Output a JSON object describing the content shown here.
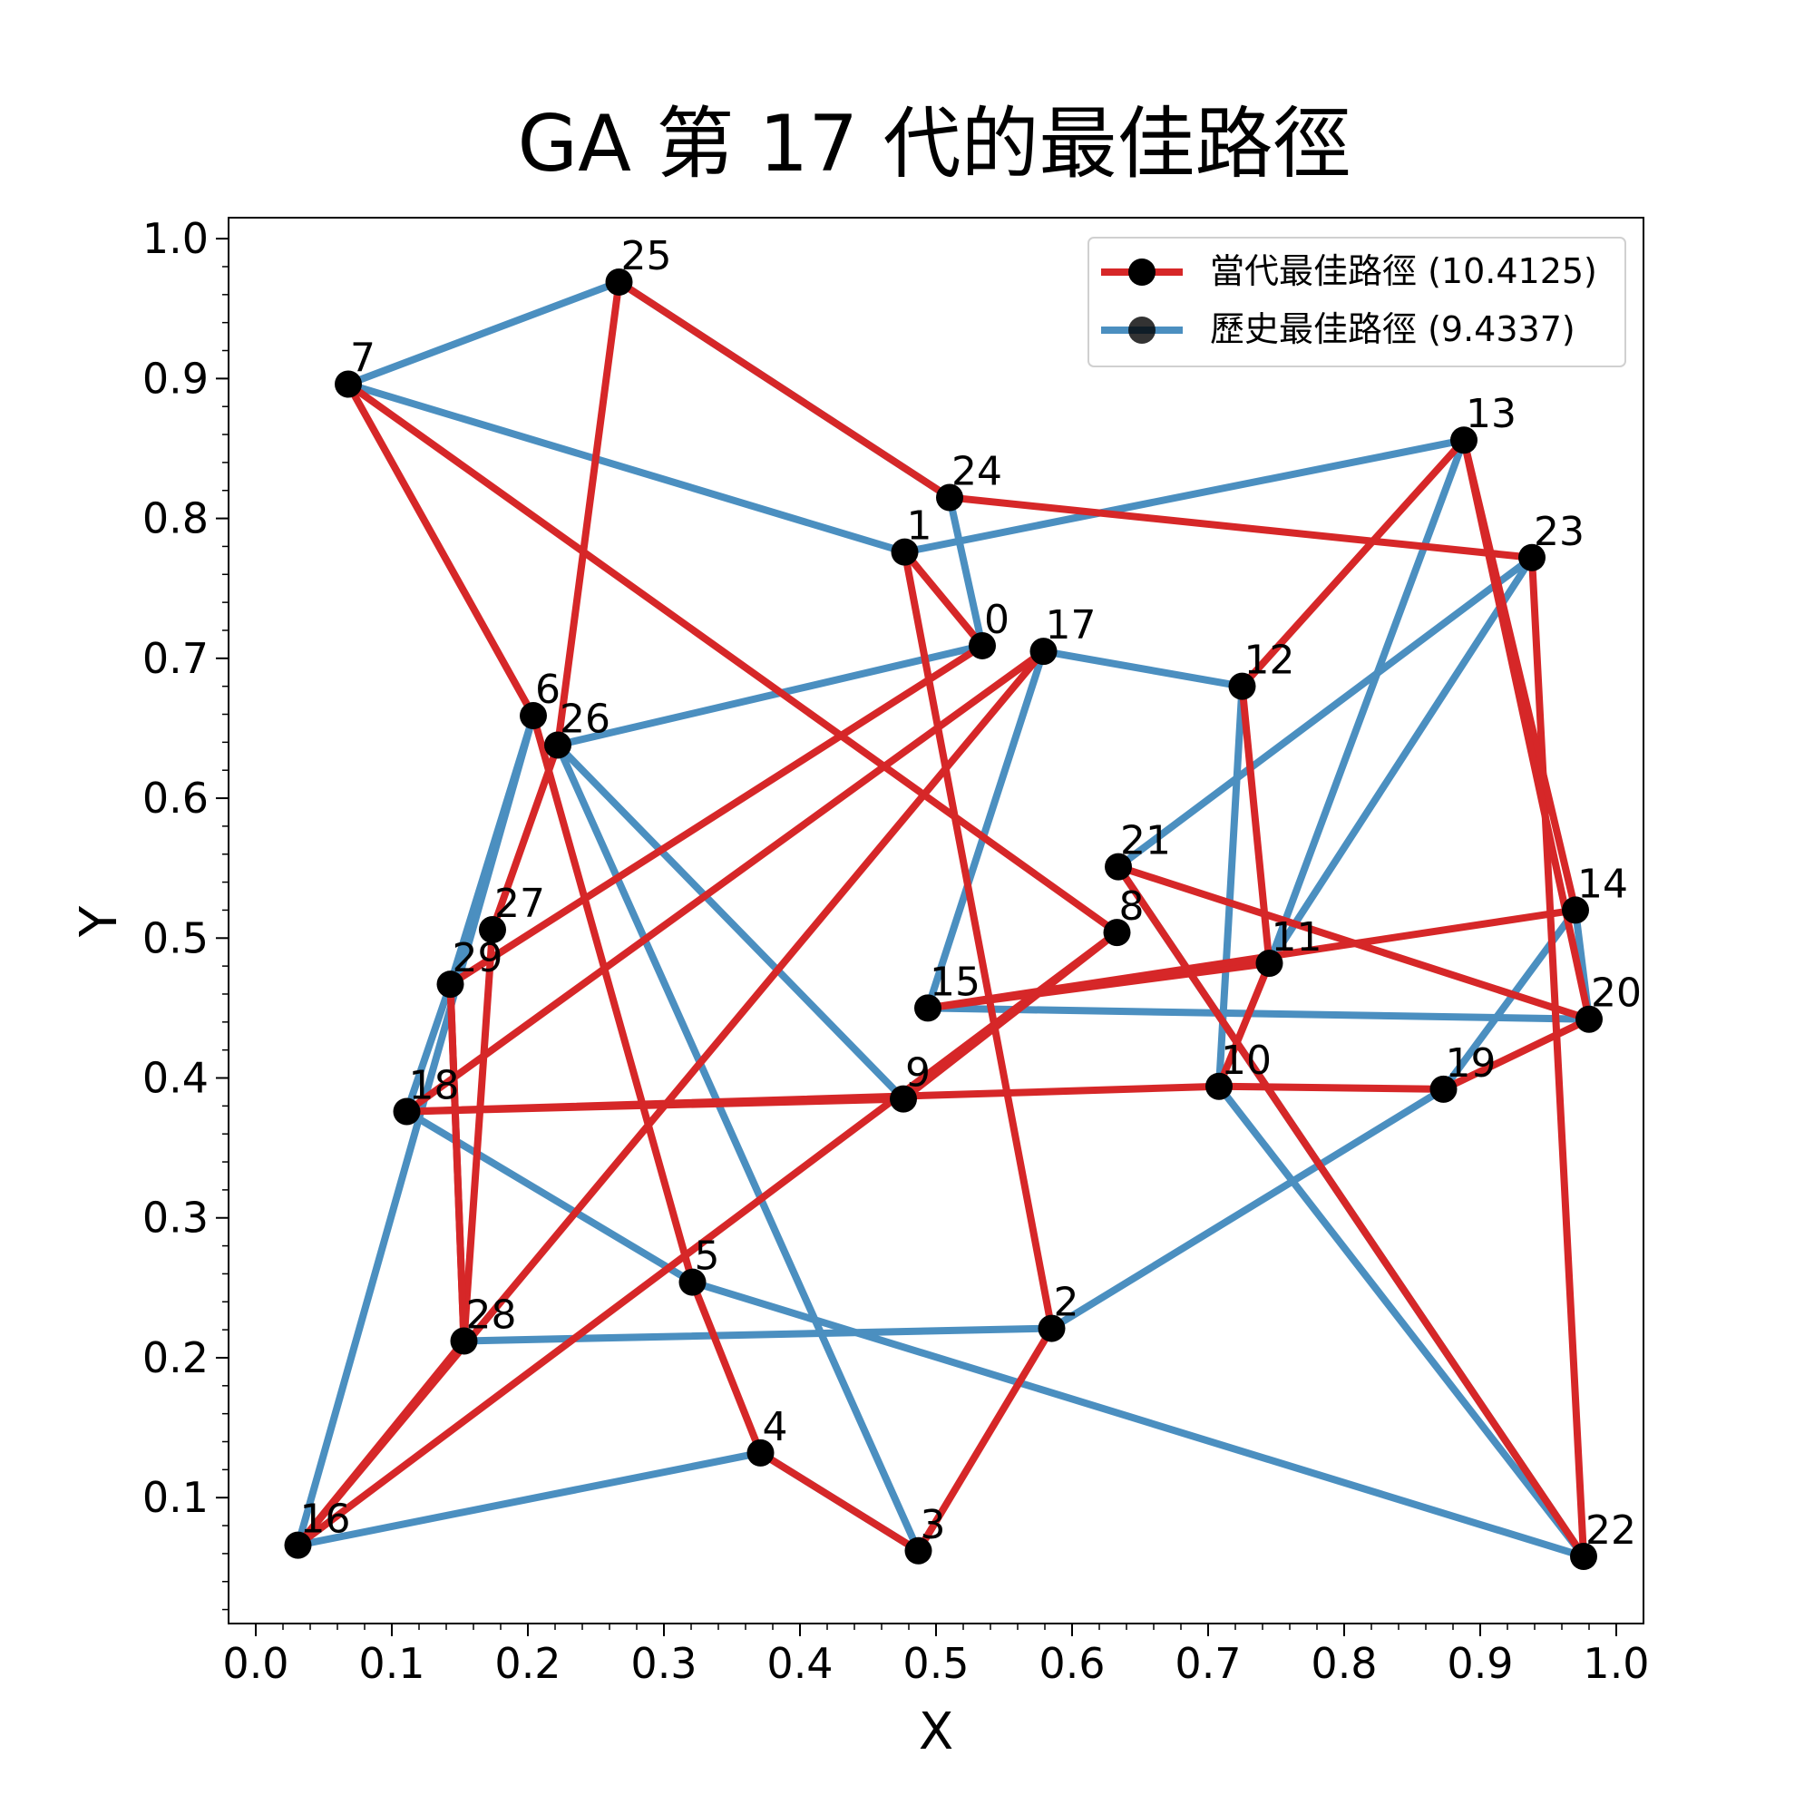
{
  "chart_data": {
    "type": "line",
    "title": "GA 第 17 代的最佳路徑",
    "xlabel": "X",
    "ylabel": "Y",
    "xlim": [
      -0.02,
      1.02
    ],
    "ylim": [
      0.01,
      1.015
    ],
    "xticks": [
      "0.0",
      "0.1",
      "0.2",
      "0.3",
      "0.4",
      "0.5",
      "0.6",
      "0.7",
      "0.8",
      "0.9",
      "1.0"
    ],
    "yticks": [
      "0.1",
      "0.2",
      "0.3",
      "0.4",
      "0.5",
      "0.6",
      "0.7",
      "0.8",
      "0.9",
      "1.0"
    ],
    "grid": false,
    "legend_position": "top-right",
    "cities": [
      {
        "id": "0",
        "x": 0.534,
        "y": 0.709
      },
      {
        "id": "1",
        "x": 0.477,
        "y": 0.776
      },
      {
        "id": "2",
        "x": 0.585,
        "y": 0.221
      },
      {
        "id": "3",
        "x": 0.487,
        "y": 0.062
      },
      {
        "id": "4",
        "x": 0.371,
        "y": 0.132
      },
      {
        "id": "5",
        "x": 0.321,
        "y": 0.254
      },
      {
        "id": "6",
        "x": 0.204,
        "y": 0.659
      },
      {
        "id": "7",
        "x": 0.068,
        "y": 0.896
      },
      {
        "id": "8",
        "x": 0.633,
        "y": 0.504
      },
      {
        "id": "9",
        "x": 0.476,
        "y": 0.385
      },
      {
        "id": "10",
        "x": 0.708,
        "y": 0.394
      },
      {
        "id": "11",
        "x": 0.745,
        "y": 0.482
      },
      {
        "id": "12",
        "x": 0.725,
        "y": 0.68
      },
      {
        "id": "13",
        "x": 0.888,
        "y": 0.856
      },
      {
        "id": "14",
        "x": 0.97,
        "y": 0.52
      },
      {
        "id": "15",
        "x": 0.494,
        "y": 0.45
      },
      {
        "id": "16",
        "x": 0.031,
        "y": 0.066
      },
      {
        "id": "17",
        "x": 0.579,
        "y": 0.705
      },
      {
        "id": "18",
        "x": 0.111,
        "y": 0.376
      },
      {
        "id": "19",
        "x": 0.873,
        "y": 0.392
      },
      {
        "id": "20",
        "x": 0.98,
        "y": 0.442
      },
      {
        "id": "21",
        "x": 0.634,
        "y": 0.551
      },
      {
        "id": "22",
        "x": 0.976,
        "y": 0.058
      },
      {
        "id": "23",
        "x": 0.938,
        "y": 0.772
      },
      {
        "id": "24",
        "x": 0.51,
        "y": 0.815
      },
      {
        "id": "25",
        "x": 0.267,
        "y": 0.969
      },
      {
        "id": "26",
        "x": 0.222,
        "y": 0.638
      },
      {
        "id": "27",
        "x": 0.174,
        "y": 0.506
      },
      {
        "id": "28",
        "x": 0.153,
        "y": 0.212
      },
      {
        "id": "29",
        "x": 0.143,
        "y": 0.467
      }
    ],
    "series": [
      {
        "name": "歷史最佳路徑 (9.4337)",
        "color": "#4b8fc0",
        "route": [
          "7",
          "1",
          "13",
          "11",
          "23",
          "21",
          "22",
          "5",
          "18",
          "29",
          "6",
          "16",
          "4",
          "3",
          "26",
          "0",
          "24",
          "25",
          "7"
        ],
        "extra_route": [
          "2",
          "28"
        ],
        "route2": [
          "9",
          "26"
        ],
        "route3": [
          "15",
          "17",
          "12",
          "10",
          "22"
        ],
        "route4": [
          "15",
          "20",
          "14",
          "19",
          "2"
        ]
      },
      {
        "name": "當代最佳路徑 (10.4125)",
        "color": "#d62728",
        "route": [
          "25",
          "26",
          "27",
          "28",
          "16",
          "17",
          "18",
          "10",
          "19",
          "20",
          "21",
          "22",
          "23",
          "24",
          "25"
        ],
        "route2": [
          "7",
          "6",
          "5",
          "4",
          "3",
          "2",
          "1",
          "0",
          "29",
          "28"
        ],
        "route3": [
          "7",
          "8",
          "9",
          "18"
        ],
        "route4": [
          "8",
          "16"
        ],
        "route5": [
          "15",
          "11",
          "10"
        ],
        "route6": [
          "15",
          "14",
          "13",
          "12",
          "11"
        ],
        "route7": [
          "13",
          "20"
        ],
        "route8": [
          "29",
          "28"
        ]
      }
    ]
  },
  "legend": {
    "current_label": "當代最佳路徑 (10.4125)",
    "history_label": "歷史最佳路徑 (9.4337)"
  }
}
